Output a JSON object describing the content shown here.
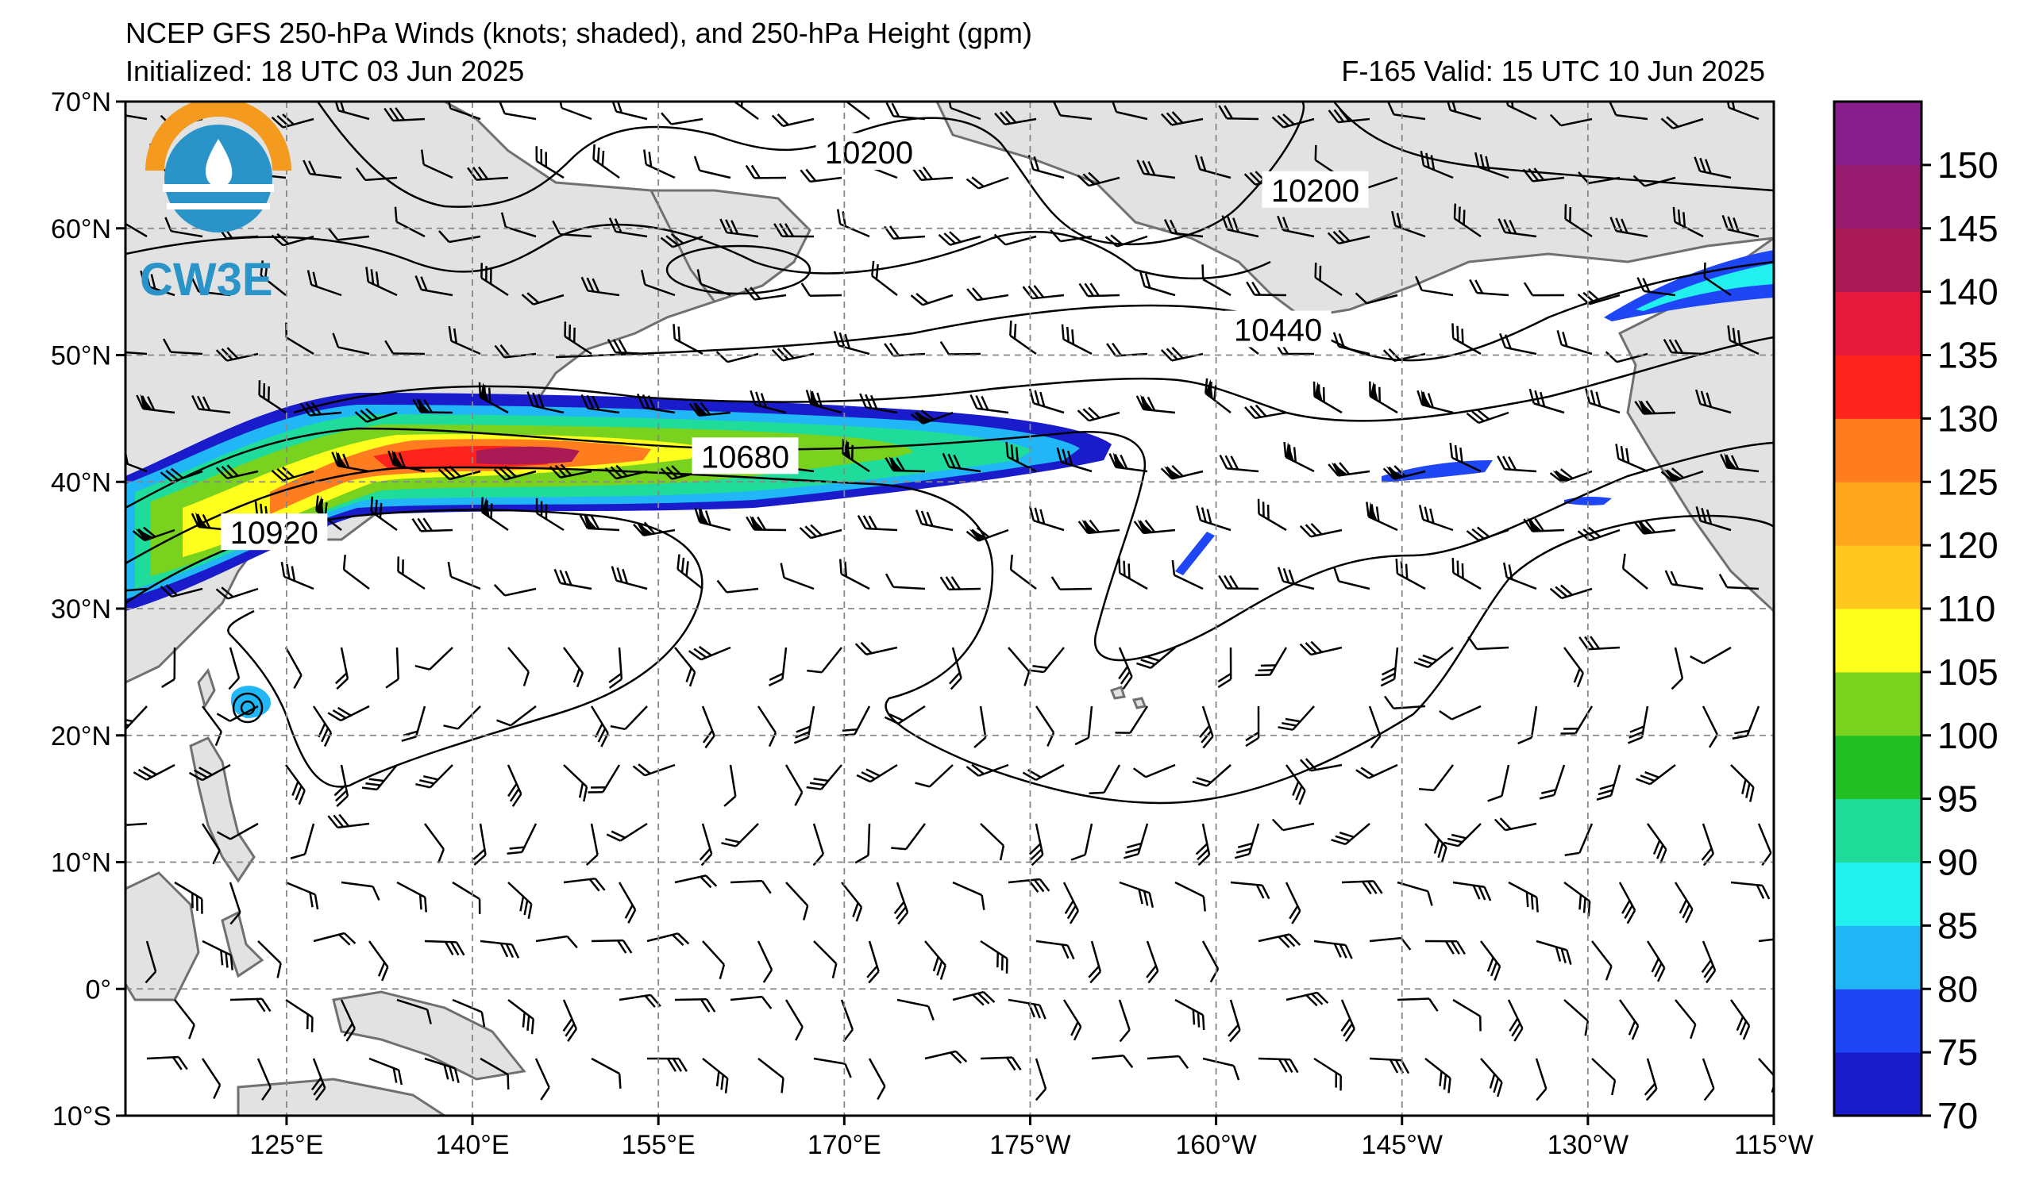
{
  "header": {
    "title": "NCEP GFS 250-hPa Winds (knots; shaded), and 250-hPa Height (gpm)",
    "initialized": "Initialized: 18 UTC 03 Jun 2025",
    "valid": "F-165  Valid: 15 UTC 10 Jun 2025"
  },
  "logo": {
    "text": "CW3E",
    "colors": {
      "orange": "#f39a1f",
      "blue": "#2a93c8"
    }
  },
  "map": {
    "lon_range_deg": [
      112,
      245
    ],
    "lat_range_deg": [
      -10,
      70
    ],
    "lat_ticks": [
      {
        "value": 70,
        "label": "70°N"
      },
      {
        "value": 60,
        "label": "60°N"
      },
      {
        "value": 50,
        "label": "50°N"
      },
      {
        "value": 40,
        "label": "40°N"
      },
      {
        "value": 30,
        "label": "30°N"
      },
      {
        "value": 20,
        "label": "20°N"
      },
      {
        "value": 10,
        "label": "10°N"
      },
      {
        "value": 0,
        "label": "0°"
      },
      {
        "value": -10,
        "label": "10°S"
      }
    ],
    "lon_ticks": [
      {
        "value": 125,
        "label": "125°E"
      },
      {
        "value": 140,
        "label": "140°E"
      },
      {
        "value": 155,
        "label": "155°E"
      },
      {
        "value": 170,
        "label": "170°E"
      },
      {
        "value": 185,
        "label": "175°W"
      },
      {
        "value": 200,
        "label": "160°W"
      },
      {
        "value": 215,
        "label": "145°W"
      },
      {
        "value": 230,
        "label": "130°W"
      },
      {
        "value": 245,
        "label": "115°W"
      }
    ],
    "land_color": "#e2e2e2",
    "contour_labels": [
      {
        "text": "10200",
        "lon": 172,
        "lat": 66
      },
      {
        "text": "10200",
        "lon": 208,
        "lat": 63
      },
      {
        "text": "10440",
        "lon": 205,
        "lat": 52
      },
      {
        "text": "10680",
        "lon": 162,
        "lat": 42
      },
      {
        "text": "10920",
        "lon": 124,
        "lat": 36
      }
    ]
  },
  "colorbar": {
    "levels": [
      70,
      75,
      80,
      85,
      90,
      95,
      100,
      105,
      110,
      120,
      125,
      130,
      135,
      140,
      145,
      150,
      155
    ],
    "labels": [
      "70",
      "75",
      "80",
      "85",
      "90",
      "95",
      "100",
      "105",
      "110",
      "120",
      "125",
      "130",
      "135",
      "140",
      "145",
      "150"
    ],
    "colors": [
      "#1a1ccc",
      "#1f46f5",
      "#21b6f6",
      "#21f0ee",
      "#1fdc9a",
      "#22bf22",
      "#78d21e",
      "#ffff1e",
      "#ffc81e",
      "#ffa51e",
      "#ff7d1e",
      "#ff231e",
      "#e6193c",
      "#aa1a55",
      "#961a6e",
      "#871e8c"
    ]
  }
}
